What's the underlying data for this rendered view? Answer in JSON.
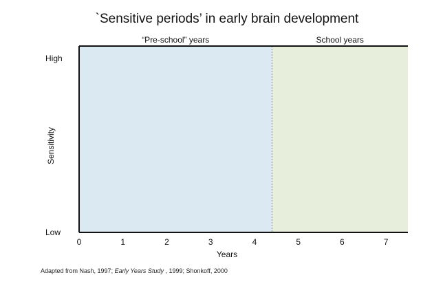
{
  "chart_data": {
    "type": "area",
    "title": "`Sensitive periods’ in early brain development",
    "xlabel": "Years",
    "ylabel": "Sensitivity",
    "xlim": [
      0,
      7.5
    ],
    "x_ticks": [
      0,
      1,
      2,
      3,
      4,
      5,
      6,
      7
    ],
    "y_ticks": [
      "Low",
      "High"
    ],
    "periods": [
      {
        "label": "“Pre-school” years",
        "start": 0,
        "end": 4.4,
        "color": "#dbe9f2"
      },
      {
        "label": "School years",
        "start": 4.4,
        "end": 7.5,
        "color": "#e8eedc"
      }
    ],
    "divider_at": 4.4,
    "grid": false,
    "footnote": {
      "part1": "Adapted from Nash, 1997; ",
      "part2": "Early Years Study",
      "part3": " , 1999; Shonkoff, 2000"
    }
  }
}
